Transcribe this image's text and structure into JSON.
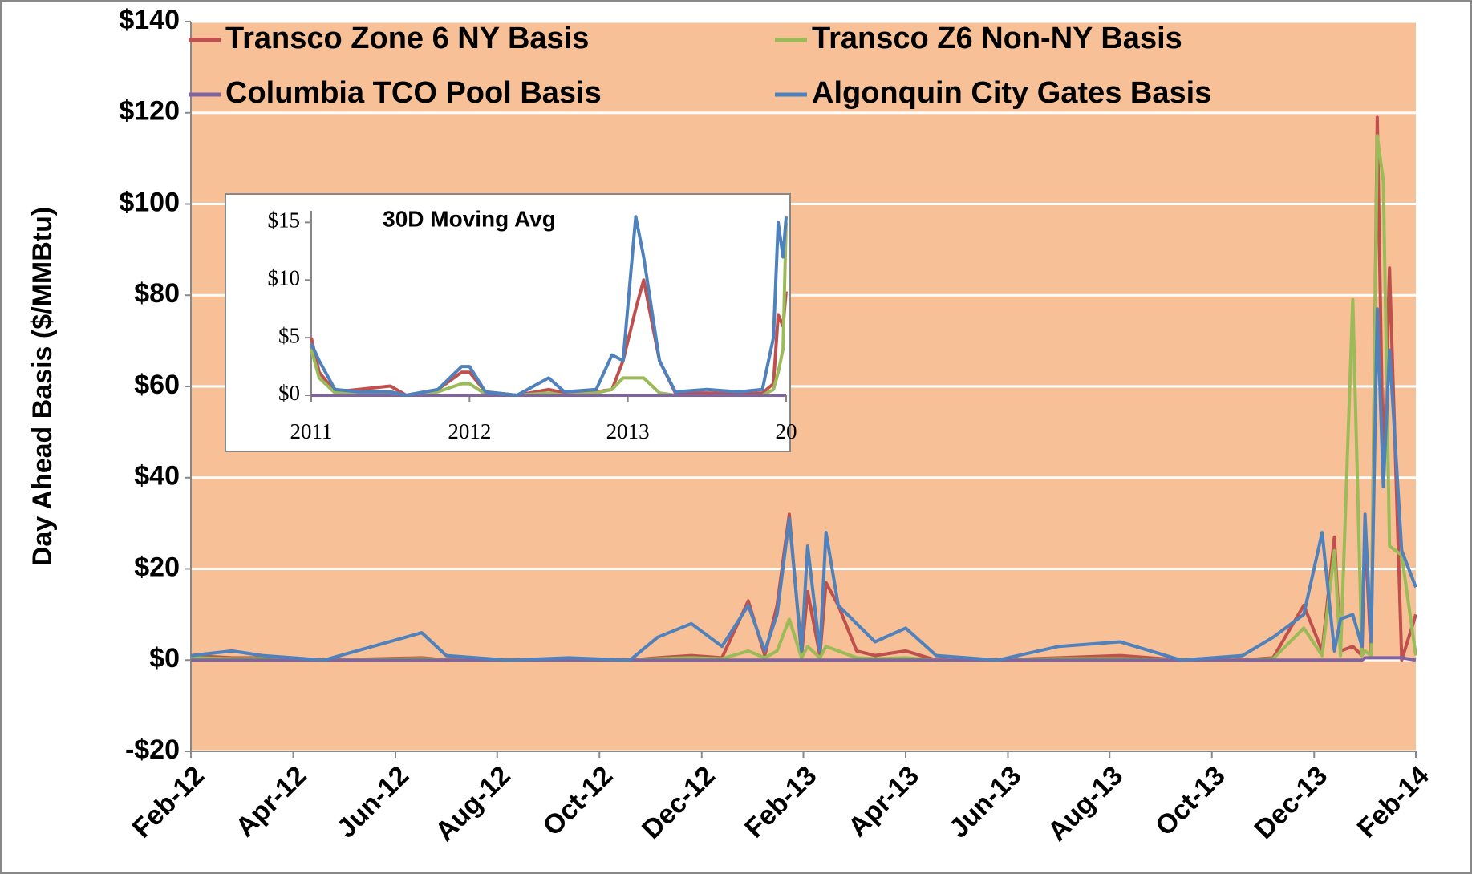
{
  "chart_data": [
    {
      "type": "line",
      "y_label": "Day Ahead Basis ($/MMBtu)",
      "legend": "top",
      "grid": true,
      "background": "#F8C096",
      "x": [
        2012.083,
        2012.15,
        2012.2,
        2012.3,
        2012.46,
        2012.5,
        2012.6,
        2012.7,
        2012.8,
        2012.845,
        2012.9,
        2012.95,
        2012.993,
        2013.02,
        2013.04,
        2013.06,
        2013.08,
        2013.09,
        2013.11,
        2013.12,
        2013.14,
        2013.17,
        2013.2,
        2013.25,
        2013.3,
        2013.4,
        2013.5,
        2013.6,
        2013.7,
        2013.8,
        2013.85,
        2013.9,
        2013.93,
        2013.95,
        2013.96,
        2013.98,
        2013.995,
        2014.0,
        2014.01,
        2014.02,
        2014.03,
        2014.04,
        2014.06,
        2014.083
      ],
      "xlim": [
        2012.083,
        2014.083
      ],
      "xticks": [
        {
          "value": 2012.083,
          "label": "Feb-12"
        },
        {
          "value": 2012.25,
          "label": "Apr-12"
        },
        {
          "value": 2012.417,
          "label": "Jun-12"
        },
        {
          "value": 2012.583,
          "label": "Aug-12"
        },
        {
          "value": 2012.75,
          "label": "Oct-12"
        },
        {
          "value": 2012.917,
          "label": "Dec-12"
        },
        {
          "value": 2013.083,
          "label": "Feb-13"
        },
        {
          "value": 2013.25,
          "label": "Apr-13"
        },
        {
          "value": 2013.417,
          "label": "Jun-13"
        },
        {
          "value": 2013.583,
          "label": "Aug-13"
        },
        {
          "value": 2013.75,
          "label": "Oct-13"
        },
        {
          "value": 2013.917,
          "label": "Dec-13"
        },
        {
          "value": 2014.083,
          "label": "Feb-14"
        }
      ],
      "ylim": [
        -20,
        140
      ],
      "yticks": [
        {
          "value": -20,
          "label": "-$20"
        },
        {
          "value": 0,
          "label": "$0"
        },
        {
          "value": 20,
          "label": "$20"
        },
        {
          "value": 40,
          "label": "$40"
        },
        {
          "value": 60,
          "label": "$60"
        },
        {
          "value": 80,
          "label": "$80"
        },
        {
          "value": 100,
          "label": "$100"
        },
        {
          "value": 120,
          "label": "$120"
        },
        {
          "value": 140,
          "label": "$140"
        }
      ],
      "series": [
        {
          "name": "Transco Zone 6 NY Basis",
          "color": "#C0504D",
          "values": [
            1,
            0.5,
            0.5,
            0,
            0.5,
            0,
            0,
            0,
            0,
            0.5,
            1,
            0.5,
            13,
            1,
            12,
            32,
            1,
            15,
            1,
            17,
            12,
            2,
            1,
            2,
            0,
            0,
            0.5,
            1,
            0,
            0,
            0.5,
            12,
            2,
            27,
            2,
            3,
            1,
            28,
            1,
            119,
            40,
            86,
            0,
            10
          ]
        },
        {
          "name": "Transco Z6 Non-NY Basis",
          "color": "#9BBB59",
          "values": [
            0.5,
            0.3,
            0.3,
            0,
            0.3,
            0,
            0,
            0,
            0,
            0.3,
            0.5,
            0.3,
            2,
            0.5,
            2,
            9,
            0.5,
            3,
            0.5,
            3,
            2,
            0.5,
            0.3,
            0.5,
            0,
            0,
            0.3,
            0.3,
            0,
            0,
            0.3,
            7,
            1,
            24,
            1,
            79,
            1,
            2,
            1,
            115,
            105,
            25,
            23,
            1
          ]
        },
        {
          "name": "Columbia TCO Pool Basis",
          "color": "#8064A2",
          "values": [
            0,
            0,
            0,
            0,
            0,
            0,
            0,
            0,
            0,
            0,
            0,
            0,
            0,
            0,
            0,
            0,
            0,
            0,
            0,
            0,
            0,
            0,
            0,
            0,
            0,
            0,
            0,
            0,
            0,
            0,
            0,
            0,
            0,
            0,
            0,
            0,
            0,
            0.5,
            0.5,
            0.5,
            0.5,
            0.5,
            0.5,
            0
          ]
        },
        {
          "name": "Algonquin City Gates Basis",
          "color": "#4F81BD",
          "values": [
            1,
            2,
            1,
            0,
            6,
            1,
            0,
            0.5,
            0,
            5,
            8,
            3,
            12,
            2,
            10,
            31,
            2,
            25,
            2,
            28,
            12,
            8,
            4,
            7,
            1,
            0,
            3,
            4,
            0,
            1,
            5,
            10,
            28,
            2,
            9,
            10,
            3,
            32,
            4,
            77,
            38,
            68,
            24,
            16
          ]
        }
      ]
    },
    {
      "type": "line",
      "title": "30D Moving Avg",
      "grid": false,
      "background": "#FFFFFF",
      "x": [
        2011.0,
        2011.05,
        2011.15,
        2011.3,
        2011.5,
        2011.6,
        2011.8,
        2011.95,
        2012.0,
        2012.1,
        2012.3,
        2012.5,
        2012.6,
        2012.8,
        2012.9,
        2012.97,
        2013.05,
        2013.1,
        2013.2,
        2013.3,
        2013.5,
        2013.7,
        2013.85,
        2013.92,
        2013.95,
        2013.98,
        2014.0
      ],
      "xlim": [
        2011,
        2014
      ],
      "xticks": [
        2011,
        2012,
        2013,
        {
          "value": 2014,
          "label": "20"
        }
      ],
      "ylim": [
        0,
        16
      ],
      "yticks": [
        {
          "value": 0,
          "label": "$0"
        },
        {
          "value": 5,
          "label": "$5"
        },
        {
          "value": 10,
          "label": "$10"
        },
        {
          "value": 15,
          "label": "$15"
        }
      ],
      "series": [
        {
          "name": "Transco Zone 6 NY Basis",
          "color": "#C0504D",
          "values": [
            5,
            2,
            0.3,
            0.5,
            0.8,
            0,
            0.5,
            2,
            2,
            0.3,
            0,
            0.5,
            0.2,
            0.3,
            0.5,
            3,
            7.5,
            10,
            3,
            0.2,
            0.2,
            0.1,
            0.2,
            1,
            7,
            6,
            9
          ]
        },
        {
          "name": "Transco Z6 Non-NY Basis",
          "color": "#9BBB59",
          "values": [
            4,
            1.5,
            0.2,
            0.2,
            0.2,
            0,
            0.3,
            1,
            1,
            0.1,
            0,
            0.2,
            0,
            0.2,
            0.5,
            1.5,
            1.5,
            1.5,
            0.2,
            0,
            0,
            0,
            0,
            0.5,
            2,
            4,
            15
          ]
        },
        {
          "name": "Columbia TCO Pool Basis",
          "color": "#8064A2",
          "values": [
            0,
            0,
            0,
            0,
            0,
            0,
            0,
            0,
            0,
            0,
            0,
            0,
            0,
            0,
            0,
            0,
            0,
            0,
            0,
            0,
            0,
            0,
            0,
            0,
            0,
            0,
            0
          ]
        },
        {
          "name": "Algonquin City Gates Basis",
          "color": "#4F81BD",
          "values": [
            4.5,
            3,
            0.5,
            0.3,
            0.3,
            0,
            0.5,
            2.5,
            2.5,
            0.3,
            0,
            1.5,
            0.3,
            0.5,
            3.5,
            3,
            15.5,
            12,
            3,
            0.3,
            0.5,
            0.3,
            0.5,
            5,
            15,
            12,
            15.5
          ]
        }
      ]
    }
  ]
}
